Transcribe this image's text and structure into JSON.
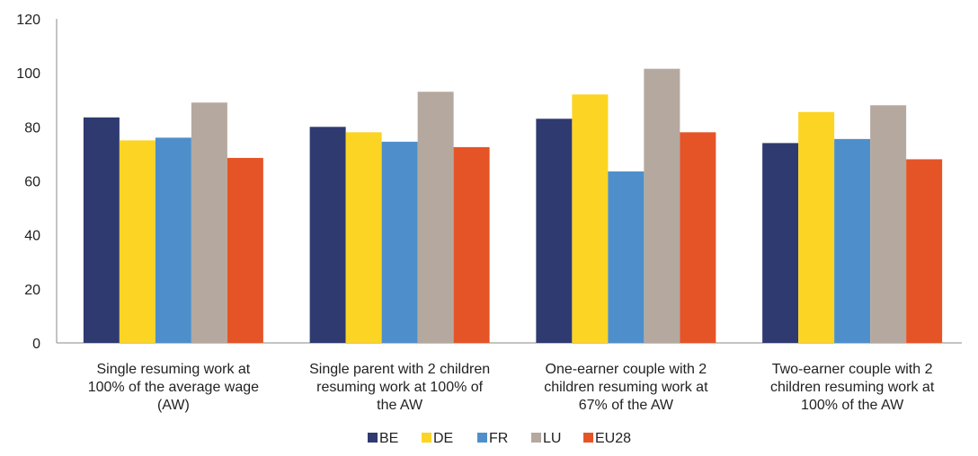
{
  "chart_data": {
    "type": "bar",
    "categories": [
      [
        "Single resuming work at",
        "100% of the average wage",
        "(AW)"
      ],
      [
        "Single parent with 2 children",
        "resuming work at 100% of",
        "the AW"
      ],
      [
        "One-earner couple with 2",
        "children resuming work at",
        "67% of the AW"
      ],
      [
        "Two-earner couple with 2",
        "children  resuming work at",
        "100% of the AW"
      ]
    ],
    "series": [
      {
        "name": "BE",
        "color": "#2e3a70",
        "values": [
          83.5,
          80,
          83,
          74
        ]
      },
      {
        "name": "DE",
        "color": "#fcd423",
        "values": [
          75,
          78,
          92,
          85.5
        ]
      },
      {
        "name": "FR",
        "color": "#4e8fcb",
        "values": [
          76,
          74.5,
          63.5,
          75.5
        ]
      },
      {
        "name": "LU",
        "color": "#b5a89f",
        "values": [
          89,
          93,
          101.5,
          88
        ]
      },
      {
        "name": "EU28",
        "color": "#e55427",
        "values": [
          68.5,
          72.5,
          78,
          68
        ]
      }
    ],
    "ylim": [
      0,
      120
    ],
    "yticks": [
      0,
      20,
      40,
      60,
      80,
      100,
      120
    ],
    "grid": false,
    "legend": "bottom-center"
  }
}
